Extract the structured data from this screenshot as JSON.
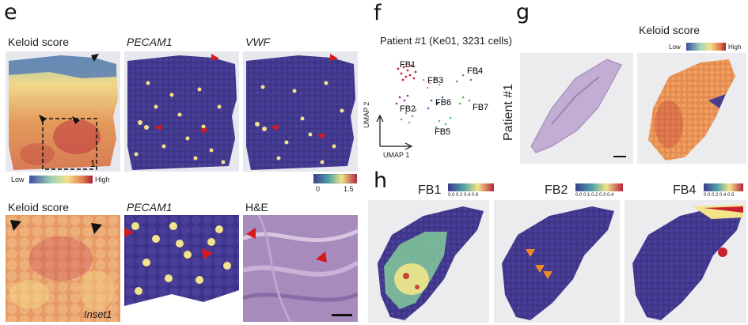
{
  "panels": {
    "e": {
      "label": "e",
      "top_titles": [
        "Keloid score",
        "PECAM1",
        "VWF"
      ],
      "inset_number": "1",
      "keloid_colorbar": {
        "low": "Low",
        "high": "High"
      },
      "expr_colorbar": {
        "ticks": [
          "0",
          "1.5"
        ]
      },
      "bottom_titles": [
        "Keloid score",
        "PECAM1",
        "H&E"
      ],
      "inset_label": "Inset1"
    },
    "f": {
      "label": "f",
      "title": "Patient #1 (Ke01, 3231 cells)",
      "clusters": [
        "FB1",
        "FB3",
        "FB4",
        "FB2",
        "FB6",
        "FB7",
        "FB5"
      ],
      "axis_y": "UMAP 2",
      "axis_x": "UMAP 1"
    },
    "g": {
      "label": "g",
      "title": "Keloid score",
      "colorbar": {
        "low": "Low",
        "high": "High"
      },
      "side_label": "Patient #1"
    },
    "h": {
      "label": "h",
      "maps": [
        {
          "name": "FB1",
          "ticks": "0.0  0.2  0.4  0.6"
        },
        {
          "name": "FB2",
          "ticks": "0.0 0.1 0.2 0.3 0.4"
        },
        {
          "name": "FB4",
          "ticks": "0.0  0.2  0.4 0.5"
        }
      ]
    }
  },
  "colors": {
    "low": "#4b3c8f",
    "mid": "#f1e48a",
    "high": "#b8233a",
    "arrow_red": "#d7191c",
    "arrow_black": "#111111",
    "arrow_orange": "#f08a24",
    "he_purple": "#a78bbd"
  }
}
